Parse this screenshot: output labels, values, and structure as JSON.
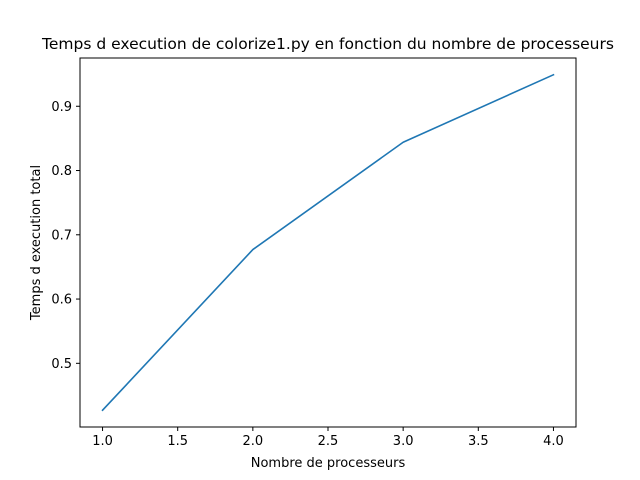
{
  "chart_data": {
    "type": "line",
    "title": "Temps d execution de colorize1.py en fonction du nombre de processeurs",
    "xlabel": "Nombre de processeurs",
    "ylabel": "Temps d execution total",
    "x": [
      1.0,
      2.0,
      3.0,
      4.0
    ],
    "series": [
      {
        "values": [
          0.427,
          0.677,
          0.844,
          0.949
        ],
        "color": "#1f77b4"
      }
    ],
    "xlim": [
      0.85,
      4.15
    ],
    "ylim": [
      0.4009,
      0.9751
    ],
    "xticks": [
      1.0,
      1.5,
      2.0,
      2.5,
      3.0,
      3.5,
      4.0
    ],
    "xtick_labels": [
      "1.0",
      "1.5",
      "2.0",
      "2.5",
      "3.0",
      "3.5",
      "4.0"
    ],
    "yticks": [
      0.5,
      0.6,
      0.7,
      0.8,
      0.9
    ],
    "ytick_labels": [
      "0.5",
      "0.6",
      "0.7",
      "0.8",
      "0.9"
    ],
    "grid": false,
    "legend": "none"
  }
}
